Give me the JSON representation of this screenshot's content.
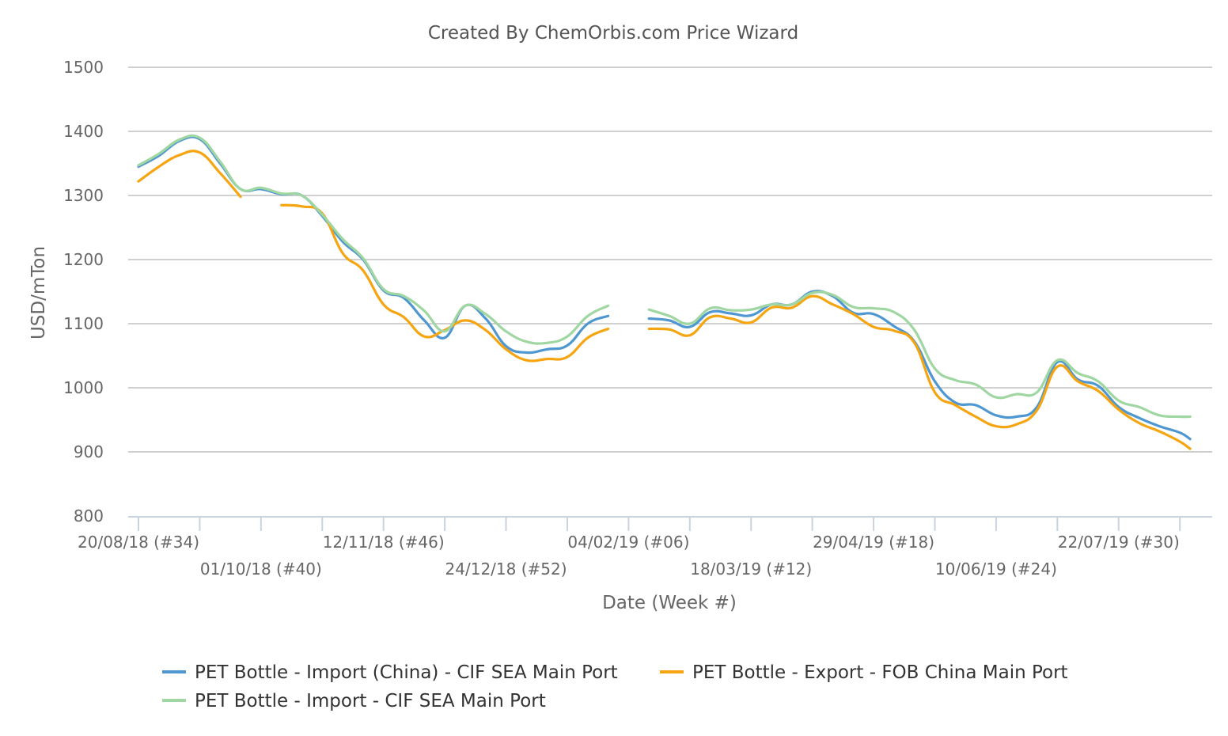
{
  "chart_data": {
    "type": "line",
    "title": "Created By ChemOrbis.com Price Wizard",
    "xlabel": "Date (Week #)",
    "ylabel": "USD/mTon",
    "ylim": [
      800,
      1500
    ],
    "yticks": [
      800,
      900,
      1000,
      1100,
      1200,
      1300,
      1400,
      1500
    ],
    "week_range": [
      34,
      86
    ],
    "xtick_labels": [
      {
        "week": 34,
        "label": "20/08/18 (#34)",
        "row": 0
      },
      {
        "week": 40,
        "label": "01/10/18 (#40)",
        "row": 1
      },
      {
        "week": 46,
        "label": "12/11/18 (#46)",
        "row": 0
      },
      {
        "week": 52,
        "label": "24/12/18 (#52)",
        "row": 1
      },
      {
        "week": 58,
        "label": "04/02/19 (#06)",
        "row": 0
      },
      {
        "week": 64,
        "label": "18/03/19 (#12)",
        "row": 1
      },
      {
        "week": 70,
        "label": "29/04/19 (#18)",
        "row": 0
      },
      {
        "week": 76,
        "label": "10/06/19 (#24)",
        "row": 1
      },
      {
        "week": 82,
        "label": "22/07/19 (#30)",
        "row": 0
      }
    ],
    "grid": true,
    "legend_position": "bottom",
    "series": [
      {
        "name": "PET Bottle - Import (China) - CIF SEA Main Port",
        "color": "#4f97d0",
        "points": [
          [
            34,
            1345
          ],
          [
            35,
            1362
          ],
          [
            36,
            1385
          ],
          [
            37,
            1388
          ],
          [
            38,
            1350
          ],
          [
            39,
            1310
          ],
          [
            40,
            1310
          ],
          [
            41,
            1302
          ],
          [
            42,
            1300
          ],
          [
            43,
            1268
          ],
          [
            44,
            1228
          ],
          [
            45,
            1200
          ],
          [
            46,
            1152
          ],
          [
            47,
            1140
          ],
          [
            48,
            1105
          ],
          [
            49,
            1078
          ],
          [
            50,
            1128
          ],
          [
            51,
            1108
          ],
          [
            52,
            1065
          ],
          [
            53,
            1055
          ],
          [
            54,
            1060
          ],
          [
            55,
            1066
          ],
          [
            56,
            1100
          ],
          [
            57,
            1112
          ],
          null,
          [
            59,
            1108
          ],
          [
            60,
            1105
          ],
          [
            61,
            1095
          ],
          [
            62,
            1118
          ],
          [
            63,
            1116
          ],
          [
            64,
            1113
          ],
          [
            65,
            1130
          ],
          [
            66,
            1130
          ],
          [
            67,
            1150
          ],
          [
            68,
            1143
          ],
          [
            69,
            1117
          ],
          [
            70,
            1115
          ],
          [
            71,
            1096
          ],
          [
            72,
            1072
          ],
          [
            73,
            1010
          ],
          [
            74,
            977
          ],
          [
            75,
            973
          ],
          [
            76,
            957
          ],
          [
            77,
            955
          ],
          [
            78,
            970
          ],
          [
            79,
            1040
          ],
          [
            80,
            1013
          ],
          [
            81,
            1003
          ],
          [
            82,
            970
          ],
          [
            83,
            953
          ],
          [
            84,
            940
          ],
          [
            85,
            930
          ],
          [
            85.5,
            920
          ]
        ]
      },
      {
        "name": "PET Bottle - Export - FOB China Main Port",
        "color": "#f5a511",
        "points": [
          [
            34,
            1322
          ],
          [
            35,
            1345
          ],
          [
            36,
            1363
          ],
          [
            37,
            1367
          ],
          [
            38,
            1335
          ],
          [
            39,
            1298
          ],
          null,
          [
            41,
            1285
          ],
          [
            42,
            1283
          ],
          [
            43,
            1272
          ],
          [
            44,
            1210
          ],
          [
            45,
            1183
          ],
          [
            46,
            1130
          ],
          [
            47,
            1110
          ],
          [
            48,
            1080
          ],
          [
            49,
            1090
          ],
          [
            50,
            1105
          ],
          [
            51,
            1090
          ],
          [
            52,
            1060
          ],
          [
            53,
            1043
          ],
          [
            54,
            1045
          ],
          [
            55,
            1048
          ],
          [
            56,
            1078
          ],
          [
            57,
            1092
          ],
          null,
          [
            59,
            1092
          ],
          [
            60,
            1091
          ],
          [
            61,
            1082
          ],
          [
            62,
            1110
          ],
          [
            63,
            1108
          ],
          [
            64,
            1102
          ],
          [
            65,
            1125
          ],
          [
            66,
            1125
          ],
          [
            67,
            1143
          ],
          [
            68,
            1130
          ],
          [
            69,
            1115
          ],
          [
            70,
            1095
          ],
          [
            71,
            1089
          ],
          [
            72,
            1070
          ],
          [
            73,
            993
          ],
          [
            74,
            973
          ],
          [
            75,
            955
          ],
          [
            76,
            940
          ],
          [
            77,
            943
          ],
          [
            78,
            965
          ],
          [
            79,
            1033
          ],
          [
            80,
            1010
          ],
          [
            81,
            995
          ],
          [
            82,
            966
          ],
          [
            83,
            945
          ],
          [
            84,
            932
          ],
          [
            85,
            916
          ],
          [
            85.5,
            905
          ]
        ]
      },
      {
        "name": "PET Bottle - Import - CIF SEA Main Port",
        "color": "#9fd6a1",
        "points": [
          [
            34,
            1347
          ],
          [
            35,
            1365
          ],
          [
            36,
            1387
          ],
          [
            37,
            1390
          ],
          [
            38,
            1353
          ],
          [
            39,
            1310
          ],
          [
            40,
            1312
          ],
          [
            41,
            1303
          ],
          [
            42,
            1300
          ],
          [
            43,
            1270
          ],
          [
            44,
            1232
          ],
          [
            45,
            1202
          ],
          [
            46,
            1154
          ],
          [
            47,
            1143
          ],
          [
            48,
            1120
          ],
          [
            49,
            1088
          ],
          [
            50,
            1128
          ],
          [
            51,
            1115
          ],
          [
            52,
            1088
          ],
          [
            53,
            1072
          ],
          [
            54,
            1070
          ],
          [
            55,
            1080
          ],
          [
            56,
            1112
          ],
          [
            57,
            1128
          ],
          null,
          [
            59,
            1122
          ],
          [
            60,
            1112
          ],
          [
            61,
            1100
          ],
          [
            62,
            1124
          ],
          [
            63,
            1121
          ],
          [
            64,
            1122
          ],
          [
            65,
            1130
          ],
          [
            66,
            1130
          ],
          [
            67,
            1148
          ],
          [
            68,
            1145
          ],
          [
            69,
            1126
          ],
          [
            70,
            1124
          ],
          [
            71,
            1118
          ],
          [
            72,
            1090
          ],
          [
            73,
            1030
          ],
          [
            74,
            1012
          ],
          [
            75,
            1005
          ],
          [
            76,
            985
          ],
          [
            77,
            990
          ],
          [
            78,
            993
          ],
          [
            79,
            1043
          ],
          [
            80,
            1023
          ],
          [
            81,
            1010
          ],
          [
            82,
            980
          ],
          [
            83,
            970
          ],
          [
            84,
            957
          ],
          [
            85,
            955
          ],
          [
            85.5,
            955
          ]
        ]
      }
    ]
  }
}
